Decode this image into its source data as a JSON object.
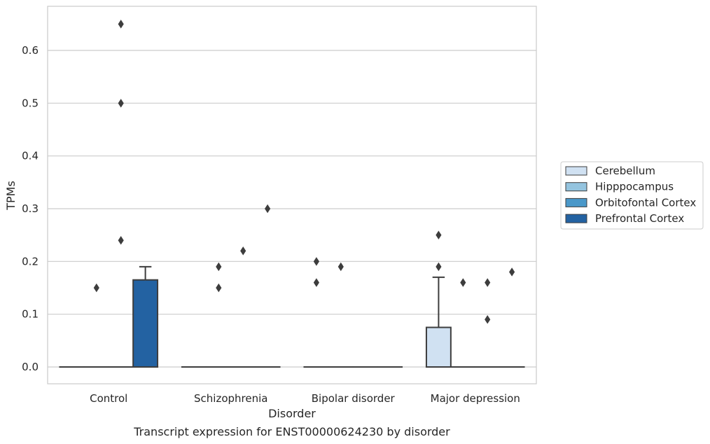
{
  "chart_data": {
    "type": "boxplot",
    "caption": "Transcript expression for ENST00000624230 by disorder",
    "xlabel": "Disorder",
    "ylabel": "TPMs",
    "ylim": [
      -0.032,
      0.68
    ],
    "yticks": [
      0.0,
      0.1,
      0.2,
      0.3,
      0.4,
      0.5,
      0.6
    ],
    "ytick_labels": [
      "0.0",
      "0.1",
      "0.2",
      "0.3",
      "0.4",
      "0.5",
      "0.6"
    ],
    "grid": "horizontal",
    "legend_position": "right",
    "categories": [
      "Control",
      "Schizophrenia",
      "Bipolar disorder",
      "Major depression"
    ],
    "series": [
      {
        "name": "Cerebellum",
        "color": "#d0e1f2",
        "boxes": [
          {
            "q1": 0,
            "median": 0,
            "q3": 0,
            "whisker_low": 0,
            "whisker_high": 0,
            "outliers": []
          },
          {
            "q1": 0,
            "median": 0,
            "q3": 0,
            "whisker_low": 0,
            "whisker_high": 0,
            "outliers": []
          },
          {
            "q1": 0,
            "median": 0,
            "q3": 0,
            "whisker_low": 0,
            "whisker_high": 0,
            "outliers": [
              0.16,
              0.2
            ]
          },
          {
            "q1": 0,
            "median": 0,
            "q3": 0.075,
            "whisker_low": 0,
            "whisker_high": 0.17,
            "outliers": [
              0.19,
              0.25
            ]
          }
        ]
      },
      {
        "name": "Hipppocampus",
        "color": "#94c4df",
        "boxes": [
          {
            "q1": 0,
            "median": 0,
            "q3": 0,
            "whisker_low": 0,
            "whisker_high": 0,
            "outliers": [
              0.15
            ]
          },
          {
            "q1": 0,
            "median": 0,
            "q3": 0,
            "whisker_low": 0,
            "whisker_high": 0,
            "outliers": [
              0.15,
              0.19
            ]
          },
          {
            "q1": 0,
            "median": 0,
            "q3": 0,
            "whisker_low": 0,
            "whisker_high": 0,
            "outliers": [
              0.19
            ]
          },
          {
            "q1": 0,
            "median": 0,
            "q3": 0,
            "whisker_low": 0,
            "whisker_high": 0,
            "outliers": [
              0.16
            ]
          }
        ]
      },
      {
        "name": "Orbitofontal Cortex",
        "color": "#4a98c9",
        "boxes": [
          {
            "q1": 0,
            "median": 0,
            "q3": 0,
            "whisker_low": 0,
            "whisker_high": 0,
            "outliers": [
              0.24,
              0.5,
              0.65
            ]
          },
          {
            "q1": 0,
            "median": 0,
            "q3": 0,
            "whisker_low": 0,
            "whisker_high": 0,
            "outliers": [
              0.22
            ]
          },
          {
            "q1": 0,
            "median": 0,
            "q3": 0,
            "whisker_low": 0,
            "whisker_high": 0,
            "outliers": []
          },
          {
            "q1": 0,
            "median": 0,
            "q3": 0,
            "whisker_low": 0,
            "whisker_high": 0,
            "outliers": [
              0.09,
              0.16
            ]
          }
        ]
      },
      {
        "name": "Prefrontal Cortex",
        "color": "#2362a2",
        "boxes": [
          {
            "q1": 0,
            "median": 0,
            "q3": 0.165,
            "whisker_low": 0,
            "whisker_high": 0.19,
            "outliers": []
          },
          {
            "q1": 0,
            "median": 0,
            "q3": 0,
            "whisker_low": 0,
            "whisker_high": 0,
            "outliers": [
              0.3
            ]
          },
          {
            "q1": 0,
            "median": 0,
            "q3": 0,
            "whisker_low": 0,
            "whisker_high": 0,
            "outliers": []
          },
          {
            "q1": 0,
            "median": 0,
            "q3": 0,
            "whisker_low": 0,
            "whisker_high": 0,
            "outliers": [
              0.18
            ]
          }
        ]
      }
    ]
  }
}
